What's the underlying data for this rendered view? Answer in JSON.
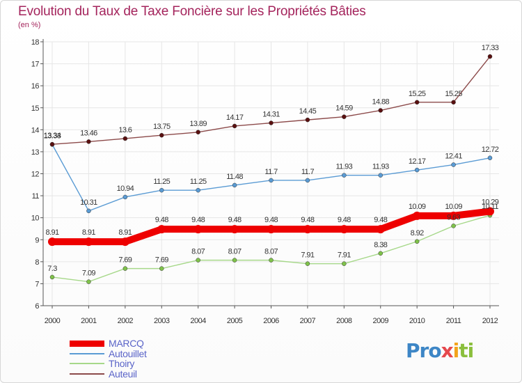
{
  "header": {
    "title": "Evolution du Taux de Taxe Foncière sur les Propriétés Bâties",
    "subtitle": "(en %)"
  },
  "logo": {
    "part1": "Pro",
    "part2": "x",
    "part3": "i",
    "part4": "ti"
  },
  "chart_data": {
    "type": "line",
    "title": "Evolution du Taux de Taxe Foncière sur les Propriétés Bâties",
    "ylabel": "(en %)",
    "xlabel": "",
    "categories": [
      "2000",
      "2001",
      "2002",
      "2003",
      "2004",
      "2005",
      "2006",
      "2007",
      "2008",
      "2009",
      "2010",
      "2011",
      "2012"
    ],
    "ylim": [
      6,
      18
    ],
    "yticks": [
      6,
      7,
      8,
      9,
      10,
      11,
      12,
      13,
      14,
      15,
      16,
      17,
      18
    ],
    "grid": true,
    "legend_position": "bottom-left",
    "series": [
      {
        "name": "MARCQ",
        "color": "#ee0000",
        "point_color": "#ee0000",
        "emphasis": true,
        "values": [
          8.91,
          8.91,
          8.91,
          9.48,
          9.48,
          9.48,
          9.48,
          9.48,
          9.48,
          9.48,
          10.09,
          10.09,
          10.29
        ],
        "labels": [
          "8.91",
          "8.91",
          "8.91",
          "9.48",
          "9.48",
          "9.48",
          "9.48",
          "9.48",
          "9.48",
          "9.48",
          "10.09",
          "10.09",
          "10.29"
        ]
      },
      {
        "name": "Autouillet",
        "color": "#5a9bd4",
        "point_color": "#5a9bd4",
        "emphasis": false,
        "values": [
          13.33,
          10.31,
          10.94,
          11.25,
          11.25,
          11.48,
          11.7,
          11.7,
          11.93,
          11.93,
          12.17,
          12.41,
          12.72
        ],
        "labels": [
          "13.33",
          "10.31",
          "10.94",
          "11.25",
          "11.25",
          "11.48",
          "11.7",
          "11.7",
          "11.93",
          "11.93",
          "12.17",
          "12.41",
          "12.72"
        ]
      },
      {
        "name": "Thoiry",
        "color": "#a6d889",
        "point_color": "#7fc24a",
        "emphasis": false,
        "values": [
          7.3,
          7.09,
          7.69,
          7.69,
          8.07,
          8.07,
          8.07,
          7.91,
          7.91,
          8.38,
          8.92,
          9.63,
          10.11
        ],
        "labels": [
          "7.3",
          "7.09",
          "7.69",
          "7.69",
          "8.07",
          "8.07",
          "8.07",
          "7.91",
          "7.91",
          "8.38",
          "8.92",
          "9.63",
          "10.11"
        ]
      },
      {
        "name": "Auteuil",
        "color": "#8c4a4a",
        "point_color": "#5a1010",
        "emphasis": false,
        "values": [
          13.34,
          13.46,
          13.6,
          13.75,
          13.89,
          14.17,
          14.31,
          14.45,
          14.59,
          14.88,
          15.25,
          15.25,
          17.33
        ],
        "labels": [
          "13.34",
          "13.46",
          "13.6",
          "13.75",
          "13.89",
          "14.17",
          "14.31",
          "14.45",
          "14.59",
          "14.88",
          "15.25",
          "15.25",
          "17.33"
        ]
      }
    ]
  }
}
